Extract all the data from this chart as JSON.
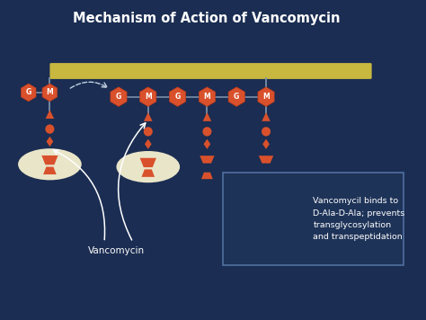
{
  "title": "Mechanism of Action of Vancomycin",
  "bg_color": "#1b2d52",
  "title_color": "#ffffff",
  "membrane_color": "#c8b840",
  "stem_color": "#7a8fa8",
  "hexagon_color": "#d9512c",
  "hexagon_edge": "#c03a1a",
  "shape_color": "#d9512c",
  "ellipse_bg": "#f5f0d0",
  "box_bg": "#1e3358",
  "box_edge": "#5070a0",
  "text_color": "#ffffff",
  "annotation_color": "#c0d0e0",
  "box_text": "Vancomycil binds to\nD-Ala-D-Ala; prevents\ntransglycosylation\nand transpeptidation",
  "vancomycin_label": "Vancomycin"
}
